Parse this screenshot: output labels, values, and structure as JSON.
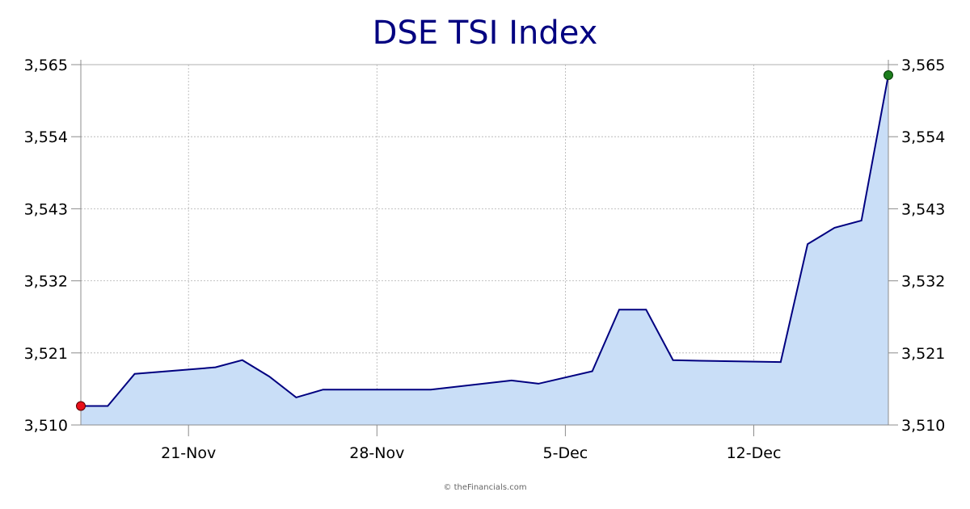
{
  "colors": {
    "title": "#000080",
    "line": "#000080",
    "area_fill": "#c9def7",
    "grid": "#b0b0b0",
    "start_marker": "#e8101a",
    "end_marker": "#1c7d1c"
  },
  "credit": "© theFinancials.com",
  "chart_data": {
    "type": "area",
    "title": "DSE TSI Index",
    "xlabel": "",
    "ylabel": "",
    "grid": true,
    "y_axis_both_sides": true,
    "ylim": [
      3510,
      3565
    ],
    "y_ticks": [
      3510,
      3521,
      3532,
      3543,
      3554,
      3565
    ],
    "y_tick_labels": [
      "3,510",
      "3,521",
      "3,532",
      "3,543",
      "3,554",
      "3,565"
    ],
    "x_range": [
      "2023-11-17",
      "2023-12-17"
    ],
    "x_ticks": [
      "2023-11-21",
      "2023-11-28",
      "2023-12-05",
      "2023-12-12"
    ],
    "x_tick_labels": [
      "21-Nov",
      "28-Nov",
      "5-Dec",
      "12-Dec"
    ],
    "series": [
      {
        "x": [
          "2023-11-17",
          "2023-11-18",
          "2023-11-19",
          "2023-11-22",
          "2023-11-23",
          "2023-11-24",
          "2023-11-25",
          "2023-11-26",
          "2023-11-29",
          "2023-11-30",
          "2023-12-03",
          "2023-12-04",
          "2023-12-06",
          "2023-12-07",
          "2023-12-08",
          "2023-12-09",
          "2023-12-10",
          "2023-12-13",
          "2023-12-14",
          "2023-12-15",
          "2023-12-16",
          "2023-12-17"
        ],
        "values": [
          3512.9,
          3512.9,
          3517.8,
          3518.8,
          3519.9,
          3517.4,
          3514.2,
          3515.4,
          3515.4,
          3515.4,
          3516.8,
          3516.3,
          3518.2,
          3527.6,
          3527.6,
          3519.9,
          3519.8,
          3519.6,
          3537.6,
          3540.1,
          3541.2,
          3563.4
        ]
      }
    ]
  }
}
